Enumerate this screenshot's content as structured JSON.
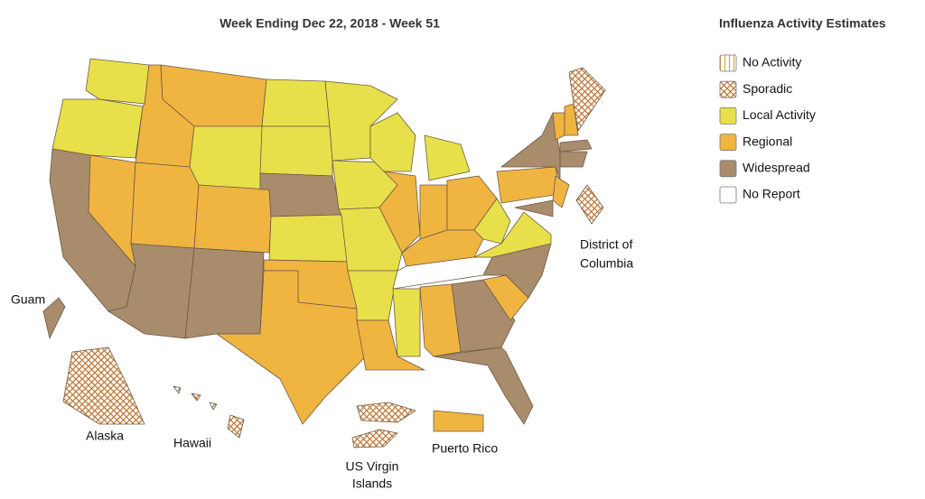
{
  "title": "Week Ending Dec 22, 2018 - Week 51",
  "legend": {
    "title": "Influenza Activity Estimates",
    "items": [
      {
        "label": "No Activity",
        "color": "#e0a050",
        "pattern": "stripes"
      },
      {
        "label": "Sporadic",
        "color": "#c07a3a",
        "pattern": "crosshatch"
      },
      {
        "label": "Local Activity",
        "color": "#e8e04a",
        "pattern": "solid"
      },
      {
        "label": "Regional",
        "color": "#f0b441",
        "pattern": "solid"
      },
      {
        "label": "Widespread",
        "color": "#a88c6c",
        "pattern": "solid"
      },
      {
        "label": "No Report",
        "color": "#ffffff",
        "pattern": "solid"
      }
    ]
  },
  "labels": {
    "guam": "Guam",
    "alaska": "Alaska",
    "hawaii": "Hawaii",
    "virgin_islands": [
      "US Virgin",
      "Islands"
    ],
    "puerto_rico": "Puerto Rico",
    "dc": [
      "District of",
      "Columbia"
    ]
  }
}
